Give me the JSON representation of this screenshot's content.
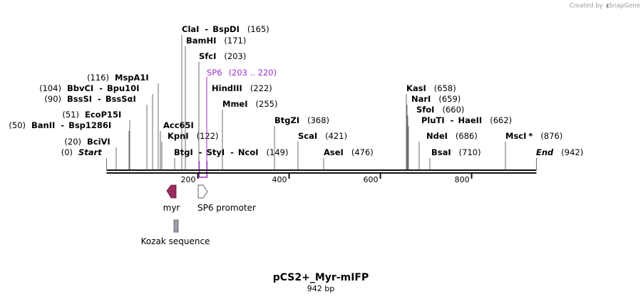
{
  "credit": {
    "text": "Created by",
    "brand": "SnapGene",
    "brand_color": "#b0b0b0"
  },
  "plasmid": {
    "name": "pCS2+_Myr-mIFP",
    "length_label": "942 bp",
    "length_bp": 942
  },
  "ruler": {
    "ticks": [
      {
        "bp": 200,
        "label": "200"
      },
      {
        "bp": 400,
        "label": "400"
      },
      {
        "bp": 600,
        "label": "600"
      },
      {
        "bp": 800,
        "label": "800"
      }
    ]
  },
  "sites": [
    {
      "id": "start",
      "name": "Start",
      "pos_label": "(0)",
      "bp": 0,
      "italic": true
    },
    {
      "id": "bcivi",
      "name": "BciVI",
      "pos_label": "(20)",
      "bp": 20
    },
    {
      "id": "banii",
      "name": "BanII",
      "name2": "Bsp1286I",
      "pos_label": "(50)",
      "bp": 50
    },
    {
      "id": "ecop15i",
      "name": "EcoP15I",
      "pos_label": "(51)",
      "bp": 51
    },
    {
      "id": "bsssi",
      "name": "BssSI",
      "name2": "BssSαI",
      "pos_label": "(90)",
      "bp": 90
    },
    {
      "id": "bbvci",
      "name": "BbvCI",
      "name2": "Bpu10I",
      "pos_label": "(104)",
      "bp": 104
    },
    {
      "id": "mspa1i",
      "name": "MspA1I",
      "pos_label": "(116)",
      "bp": 116
    },
    {
      "id": "acc65i",
      "name": "Acc65I",
      "pos_label": "",
      "bp": 118
    },
    {
      "id": "kpni",
      "name": "KpnI",
      "pos_label": "(122)",
      "bp": 122
    },
    {
      "id": "btgi",
      "name": "BtgI",
      "name2": "StyI",
      "name3": "NcoI",
      "pos_label": "(149)",
      "bp": 149
    },
    {
      "id": "clai",
      "name": "ClaI",
      "name2": "BspDI",
      "pos_label": "(165)",
      "bp": 165
    },
    {
      "id": "bamhi",
      "name": "BamHI",
      "pos_label": "(171)",
      "bp": 171
    },
    {
      "id": "sfci",
      "name": "SfcI",
      "pos_label": "(203)",
      "bp": 203
    },
    {
      "id": "hindiii",
      "name": "HindIII",
      "pos_label": "(222)",
      "bp": 222
    },
    {
      "id": "mmei",
      "name": "MmeI",
      "pos_label": "(255)",
      "bp": 255
    },
    {
      "id": "btgzi",
      "name": "BtgZI",
      "pos_label": "(368)",
      "bp": 368
    },
    {
      "id": "scai",
      "name": "ScaI",
      "pos_label": "(421)",
      "bp": 421
    },
    {
      "id": "asei",
      "name": "AseI",
      "pos_label": "(476)",
      "bp": 476
    },
    {
      "id": "kasi",
      "name": "KasI",
      "pos_label": "(658)",
      "bp": 658
    },
    {
      "id": "nari",
      "name": "NarI",
      "pos_label": "(659)",
      "bp": 659
    },
    {
      "id": "sfoi",
      "name": "SfoI",
      "pos_label": "(660)",
      "bp": 660
    },
    {
      "id": "pluti",
      "name": "PluTI",
      "name2": "HaeII",
      "pos_label": "(662)",
      "bp": 662
    },
    {
      "id": "ndei",
      "name": "NdeI",
      "pos_label": "(686)",
      "bp": 686
    },
    {
      "id": "bsai",
      "name": "BsaI",
      "pos_label": "(710)",
      "bp": 710
    },
    {
      "id": "msci",
      "name": "MscI",
      "name_suffix": "*",
      "pos_label": "(876)",
      "bp": 876
    },
    {
      "id": "end",
      "name": "End",
      "pos_label": "(942)",
      "bp": 942,
      "italic": true
    }
  ],
  "primer": {
    "name": "SP6",
    "range_label": "(203 .. 220)",
    "start": 203,
    "end": 220,
    "color": "#9b30c8"
  },
  "features": [
    {
      "id": "myr",
      "label": "myr",
      "start": 135,
      "end": 155,
      "shape": "arrow-left",
      "color": "#9b2c5c"
    },
    {
      "id": "sp6-promoter",
      "label": "SP6 promoter",
      "start": 203,
      "end": 222,
      "shape": "arrow-right",
      "color": "#ffffff"
    },
    {
      "id": "kozak",
      "label": "Kozak sequence",
      "start": 144,
      "end": 153,
      "shape": "box",
      "color": "#9aa0ac"
    }
  ]
}
